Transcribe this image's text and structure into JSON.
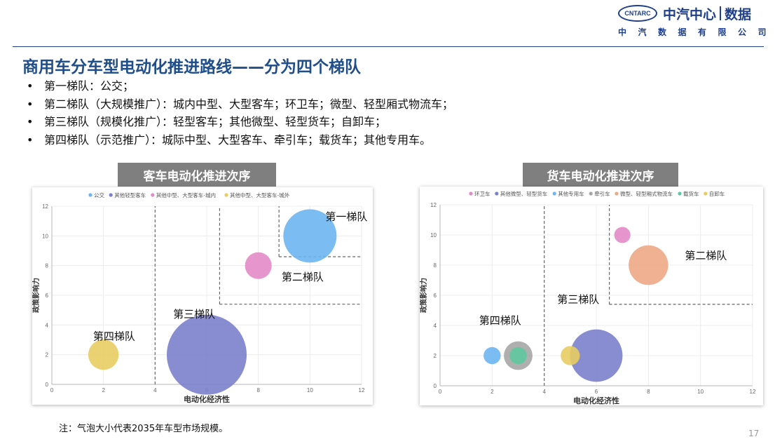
{
  "header": {
    "logo_abbr": "CNTARC",
    "logo_name": "中汽中心",
    "logo_data": "数据",
    "logo_sub": "中汽数据有限公司"
  },
  "title": "商用车分车型电动化推进路线——分为四个梯队",
  "bullets": [
    "第一梯队：公交；",
    "第二梯队（大规模推广）：城内中型、大型客车；环卫车；微型、轻型厢式物流车；",
    "第三梯队（规模化推广）：轻型客车；其他微型、轻型货车；自卸车；",
    "第四梯队（示范推广）：城际中型、大型客车、牵引车；载货车；其他专用车。"
  ],
  "note": "注：气泡大小代表2035年车型市场规模。",
  "page_number": "17",
  "chart_data": [
    {
      "type": "scatter",
      "panel_title": "客车电动化推进次序",
      "xlabel": "电动化经济性",
      "ylabel": "政策影响力",
      "xlim": [
        0,
        12
      ],
      "ylim": [
        0,
        12
      ],
      "xticks": [
        0,
        2,
        4,
        6,
        8,
        10,
        12
      ],
      "yticks": [
        0,
        2,
        4,
        6,
        8,
        10,
        12
      ],
      "legend_position": "top",
      "series": [
        {
          "name": "公交",
          "color": "#6db6f2",
          "points": [
            {
              "x": 10,
              "y": 10,
              "size": 1.0
            }
          ]
        },
        {
          "name": "其他轻型客车",
          "color": "#7b80cc",
          "points": [
            {
              "x": 6,
              "y": 2,
              "size": 1.5
            }
          ]
        },
        {
          "name": "其他中型、大型客车-城内",
          "color": "#e48ac8",
          "points": [
            {
              "x": 8,
              "y": 8,
              "size": 0.5
            }
          ]
        },
        {
          "name": "其他中型、大型客车-城外",
          "color": "#e8cc62",
          "points": [
            {
              "x": 2,
              "y": 2,
              "size": 0.57
            }
          ]
        }
      ],
      "annotations": [
        {
          "text": "第一梯队",
          "x": 10.6,
          "y": 11.05
        },
        {
          "text": "第二梯队",
          "x": 8.9,
          "y": 7.0
        },
        {
          "text": "第三梯队",
          "x": 4.7,
          "y": 4.5
        },
        {
          "text": "第四梯队",
          "x": 1.6,
          "y": 3.0
        }
      ],
      "dividers": [
        [
          [
            4,
            0
          ],
          [
            4,
            12
          ]
        ],
        [
          [
            6.5,
            5.4
          ],
          [
            6.5,
            12
          ]
        ],
        [
          [
            6.5,
            5.4
          ],
          [
            12,
            5.4
          ]
        ],
        [
          [
            8.8,
            8.6
          ],
          [
            8.8,
            12
          ]
        ],
        [
          [
            8.8,
            8.6
          ],
          [
            12,
            8.6
          ]
        ]
      ]
    },
    {
      "type": "scatter",
      "panel_title": "货车电动化推进次序",
      "xlabel": "电动化经济性",
      "ylabel": "政策影响力",
      "xlim": [
        0,
        12
      ],
      "ylim": [
        0,
        12
      ],
      "xticks": [
        0,
        2,
        4,
        6,
        8,
        10,
        12
      ],
      "yticks": [
        0,
        2,
        4,
        6,
        8,
        10,
        12
      ],
      "legend_position": "top",
      "series": [
        {
          "name": "环卫车",
          "color": "#e48ac8",
          "points": [
            {
              "x": 7,
              "y": 10,
              "size": 0.34
            }
          ]
        },
        {
          "name": "其他微型、轻型货车",
          "color": "#7b80cc",
          "points": [
            {
              "x": 6,
              "y": 2,
              "size": 1.1
            }
          ]
        },
        {
          "name": "其他专用车",
          "color": "#6db6f2",
          "points": [
            {
              "x": 2,
              "y": 2,
              "size": 0.36
            }
          ]
        },
        {
          "name": "牵引车",
          "color": "#a6a6a6",
          "points": [
            {
              "x": 3,
              "y": 2,
              "size": 0.6
            }
          ]
        },
        {
          "name": "微型、轻型厢式物流车",
          "color": "#eea887",
          "points": [
            {
              "x": 8,
              "y": 8,
              "size": 0.83
            }
          ]
        },
        {
          "name": "载货车",
          "color": "#5fc9a0",
          "points": [
            {
              "x": 3,
              "y": 2,
              "size": 0.36
            }
          ]
        },
        {
          "name": "自卸车",
          "color": "#e8cc62",
          "points": [
            {
              "x": 5,
              "y": 2,
              "size": 0.4
            }
          ]
        }
      ],
      "annotations": [
        {
          "text": "第二梯队",
          "x": 9.4,
          "y": 8.4
        },
        {
          "text": "第三梯队",
          "x": 4.5,
          "y": 5.5
        },
        {
          "text": "第四梯队",
          "x": 1.5,
          "y": 4.1
        }
      ],
      "dividers": [
        [
          [
            4,
            0
          ],
          [
            4,
            12
          ]
        ],
        [
          [
            6.5,
            5.4
          ],
          [
            6.5,
            12
          ]
        ],
        [
          [
            6.5,
            5.4
          ],
          [
            12,
            5.4
          ]
        ]
      ]
    }
  ]
}
